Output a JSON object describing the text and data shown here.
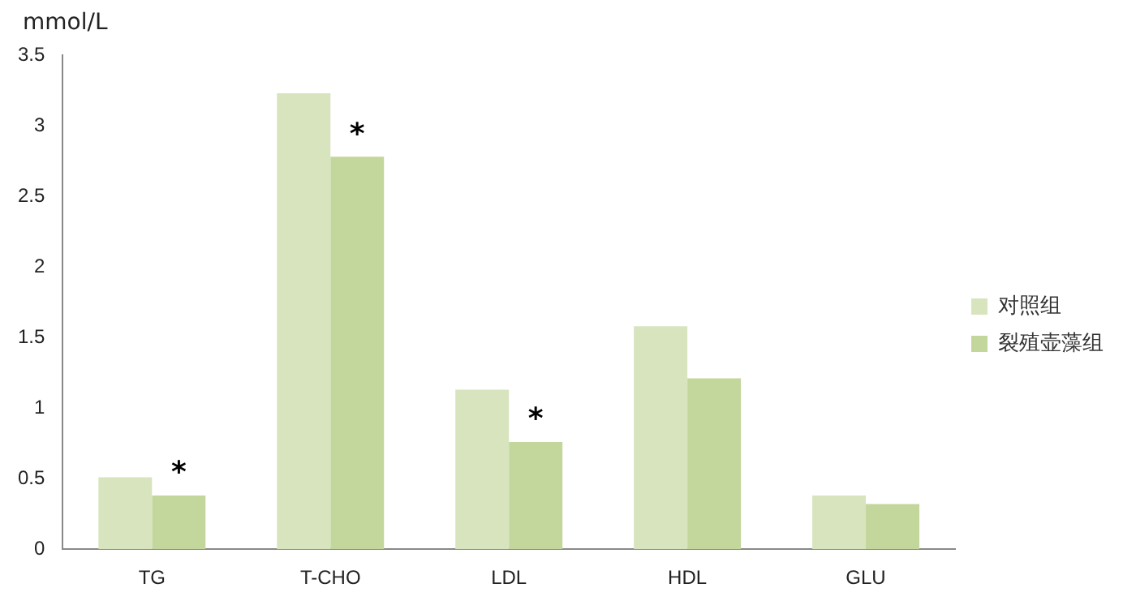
{
  "chart_data": {
    "type": "bar",
    "ylabel": "mmol/L",
    "categories": [
      "TG",
      "T-CHO",
      "LDL",
      "HDL",
      "GLU"
    ],
    "series": [
      {
        "name": "对照组",
        "color": "#d7e4bd",
        "values": [
          0.51,
          3.23,
          1.13,
          1.58,
          0.38
        ]
      },
      {
        "name": "裂殖壶藻组",
        "color": "#c3d69b",
        "values": [
          0.38,
          2.78,
          0.76,
          1.21,
          0.32
        ]
      }
    ],
    "ylim": [
      0,
      3.5
    ],
    "yticks": [
      0,
      0.5,
      1,
      1.5,
      2,
      2.5,
      3,
      3.5
    ],
    "grid": false,
    "legend": "right",
    "annotations": [
      {
        "text": "*",
        "x": "TG",
        "y": 0.38
      },
      {
        "text": "*",
        "x": "T-CHO",
        "y": 2.78
      },
      {
        "text": "*",
        "x": "LDL",
        "y": 0.76
      }
    ]
  }
}
